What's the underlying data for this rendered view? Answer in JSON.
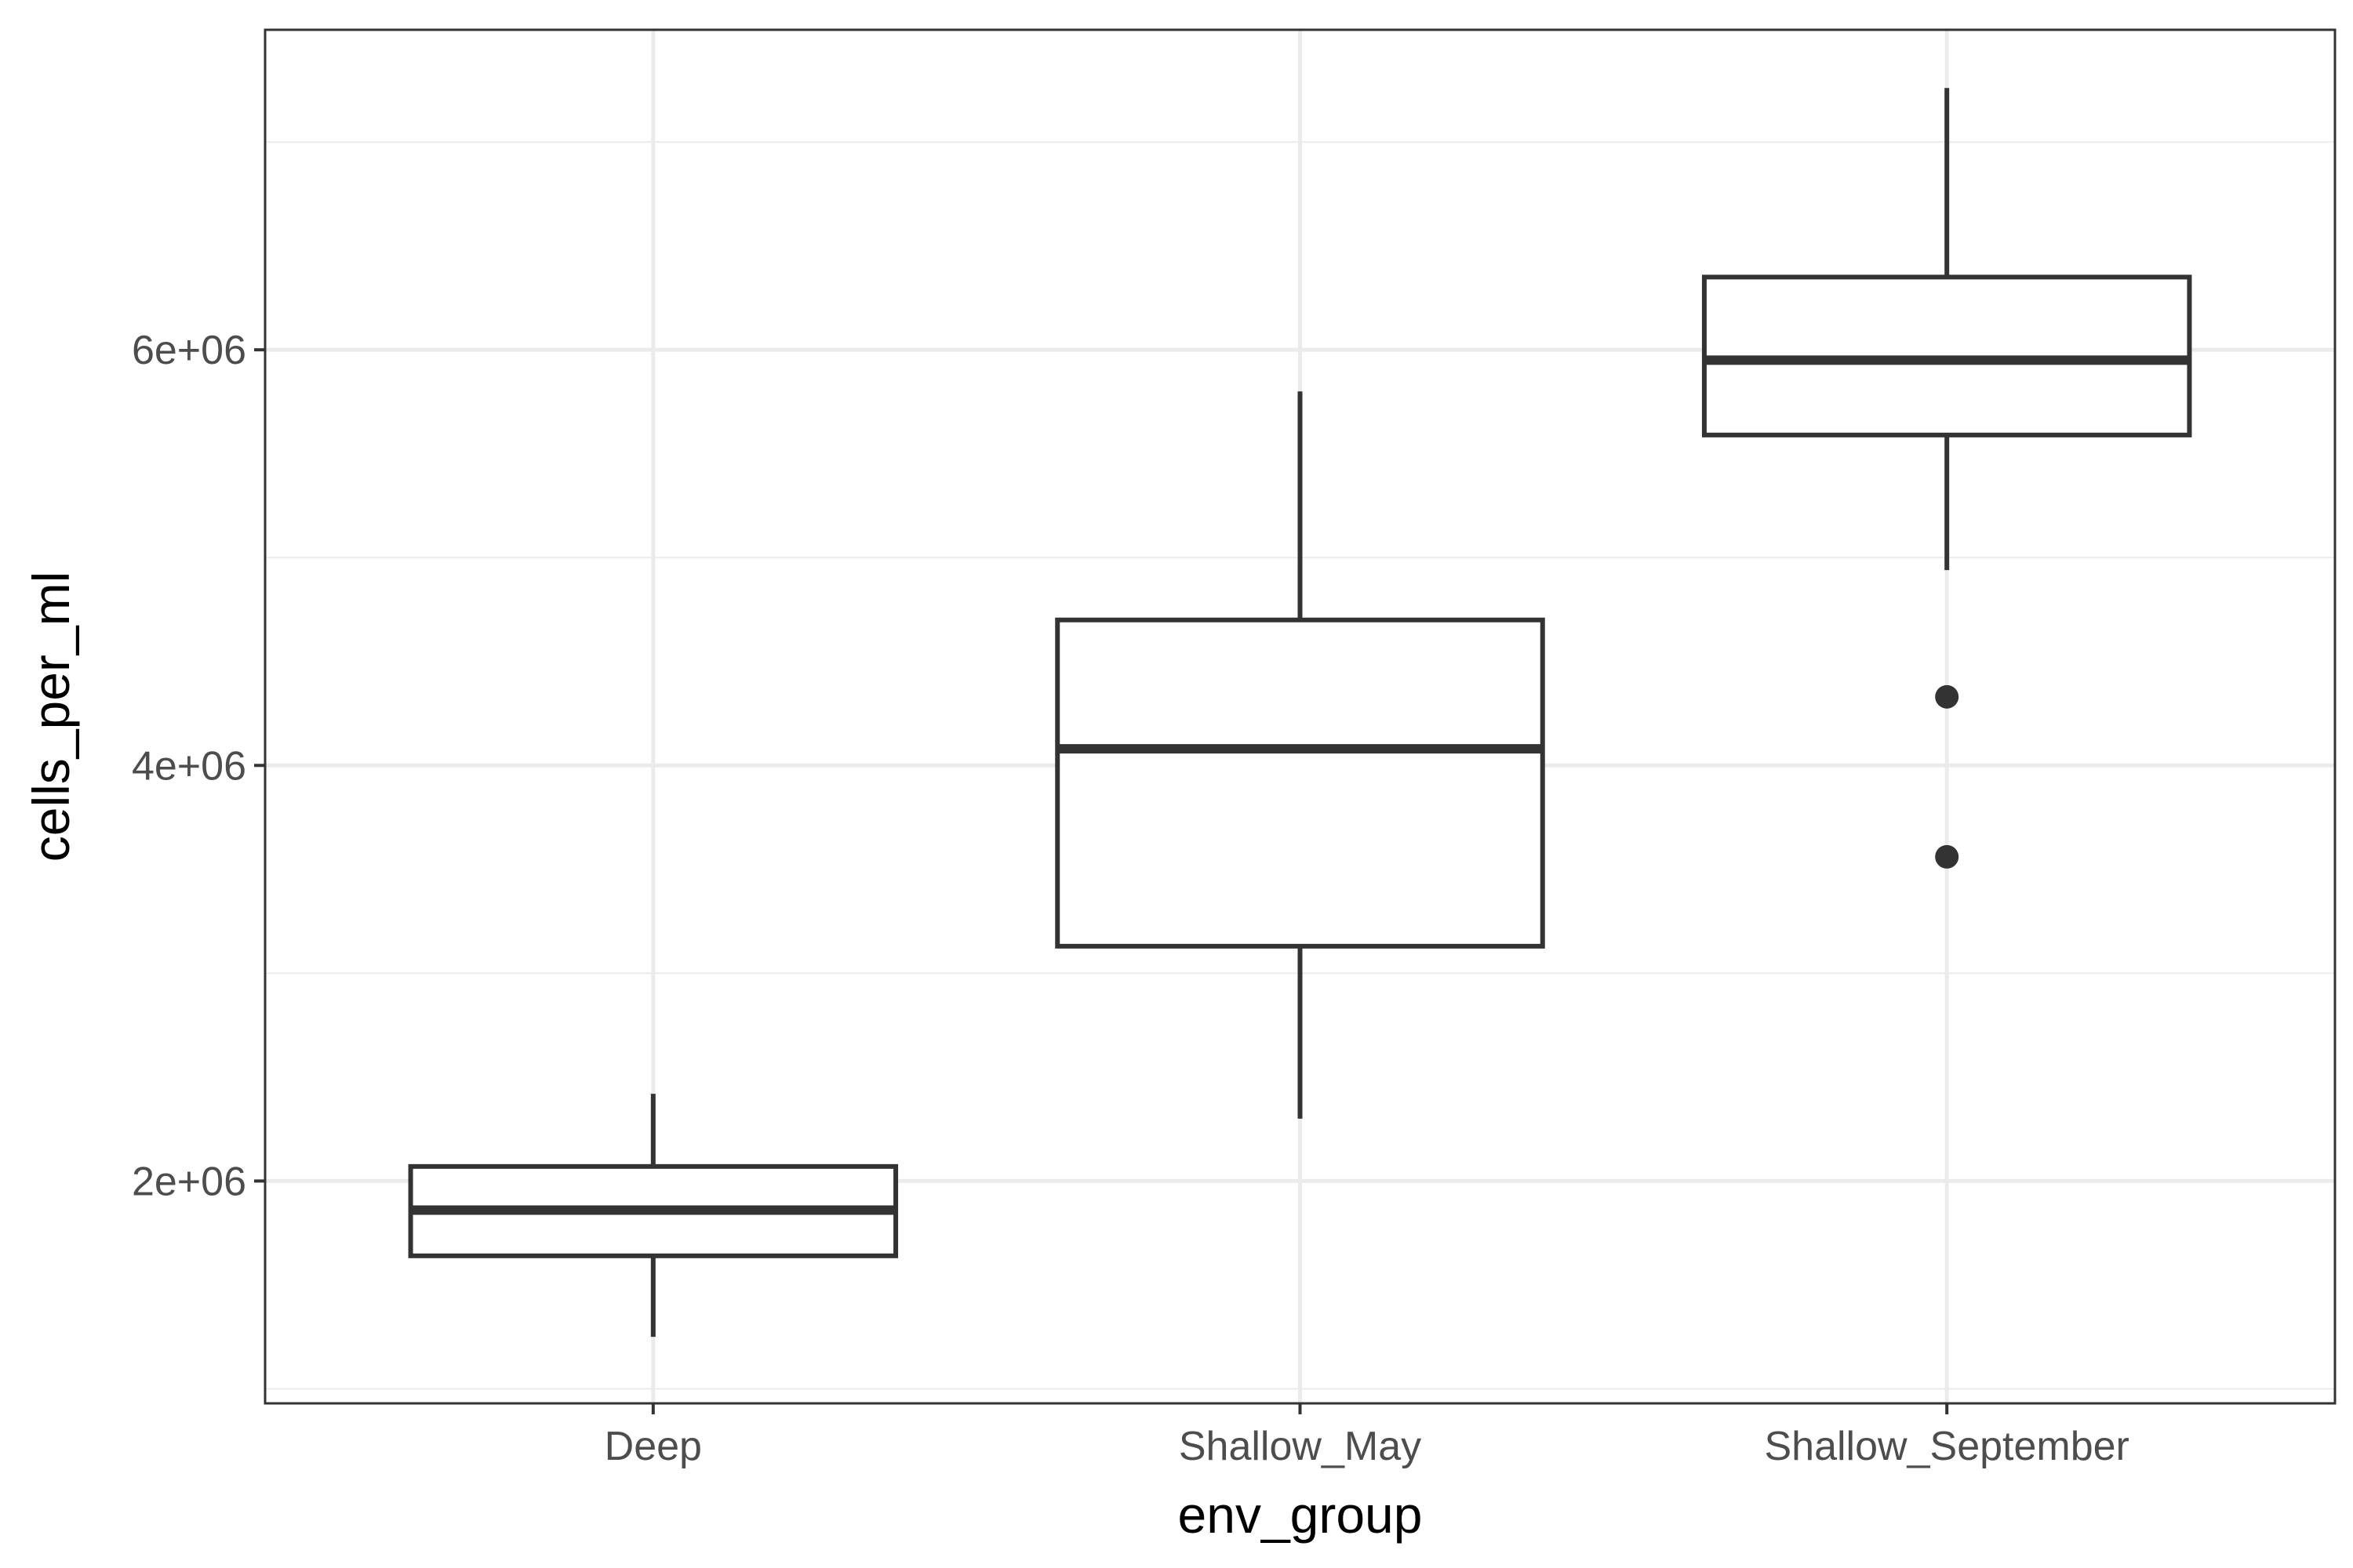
{
  "chart_data": {
    "type": "box",
    "title": "",
    "xlabel": "env_group",
    "ylabel": "cells_per_ml",
    "categories": [
      "Deep",
      "Shallow_May",
      "Shallow_September"
    ],
    "boxes": [
      {
        "category": "Deep",
        "whisker_low": 1250000,
        "q1": 1640000,
        "median": 1860000,
        "q3": 2070000,
        "whisker_high": 2420000,
        "outliers": []
      },
      {
        "category": "Shallow_May",
        "whisker_low": 2300000,
        "q1": 3130000,
        "median": 4080000,
        "q3": 4700000,
        "whisker_high": 5800000,
        "outliers": []
      },
      {
        "category": "Shallow_September",
        "whisker_low": 4940000,
        "q1": 5590000,
        "median": 5950000,
        "q3": 6350000,
        "whisker_high": 7260000,
        "outliers": [
          4330000,
          3560000
        ]
      }
    ],
    "y_ticks": [
      2000000,
      4000000,
      6000000
    ],
    "y_tick_labels": [
      "2e+06",
      "4e+06",
      "6e+06"
    ],
    "ylim": [
      930000,
      7540000
    ],
    "grid": true,
    "legend": "none",
    "colors": {
      "box_line": "#333333",
      "grid": "#ebebeb",
      "panel_border": "#333333",
      "tick_text": "#4d4d4d"
    }
  }
}
